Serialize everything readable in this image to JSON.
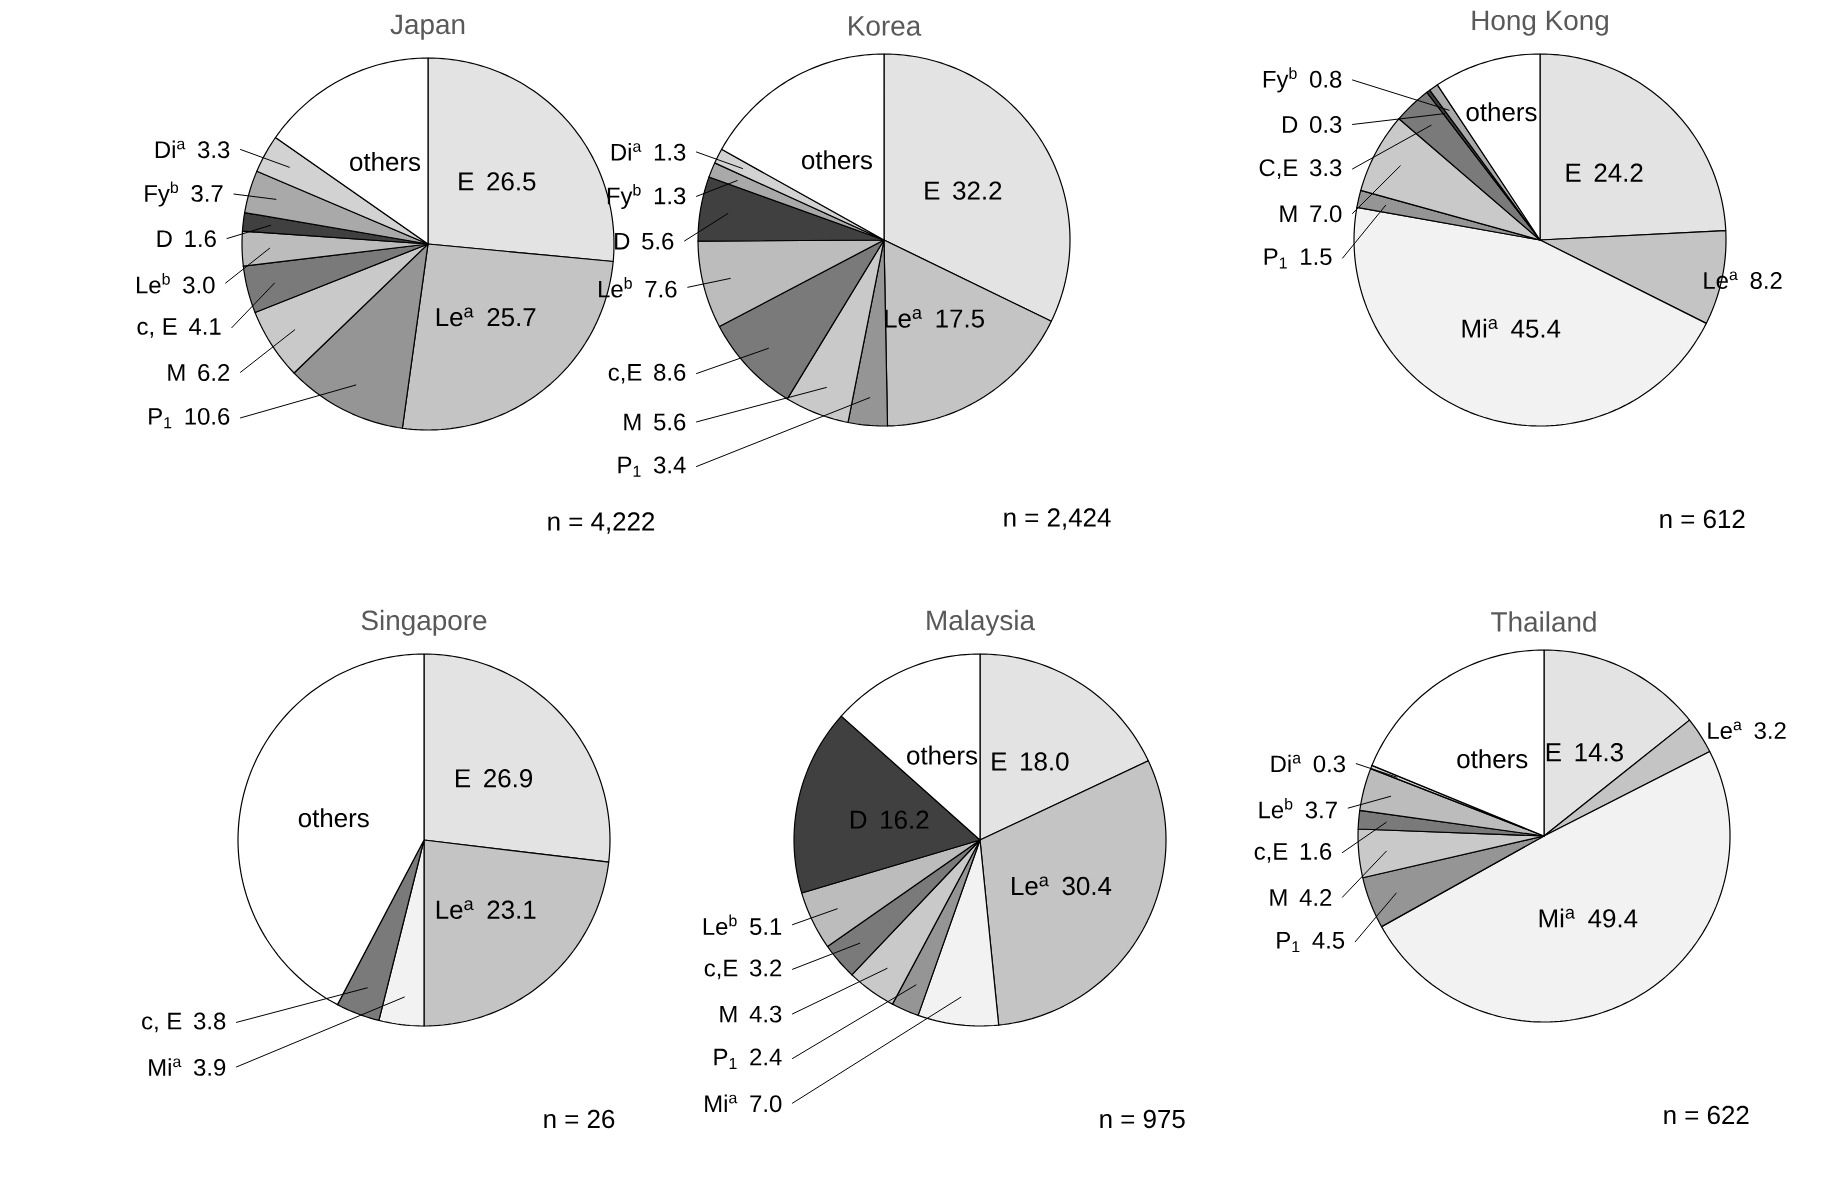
{
  "chart_data": [
    {
      "type": "pie",
      "title": "Japan",
      "categories": [
        "E",
        "Le$^{a}$",
        "P$_{1}$",
        "M",
        "c, E",
        "Le$^{b}$",
        "D",
        "Fy$^{b}$",
        "Di$^{a}$",
        "others"
      ],
      "values": [
        26.5,
        25.7,
        10.6,
        6.2,
        4.1,
        3.0,
        1.6,
        3.7,
        3.3,
        15.3
      ],
      "value_labels": [
        "26.5",
        "25.7",
        "10.6",
        "6.2",
        "4.1",
        "3.0",
        "1.6",
        "3.7",
        "3.3",
        null
      ],
      "colors": [
        "#e3e3e3",
        "#c4c4c4",
        "#959595",
        "#c9c9c9",
        "#7a7a7a",
        "#bcbcbc",
        "#404040",
        "#a9a9a9",
        "#d2d2d2",
        "#ffffff"
      ],
      "annotations": [
        "n = 4,222"
      ]
    },
    {
      "type": "pie",
      "title": "Korea",
      "categories": [
        "E",
        "Le$^{a}$",
        "P$_{1}$",
        "M",
        "c,E",
        "Le$^{b}$",
        "D",
        "Fy$^{b}$",
        "Di$^{a}$",
        "others"
      ],
      "values": [
        32.2,
        17.5,
        3.4,
        5.6,
        8.6,
        7.6,
        5.6,
        1.3,
        1.3,
        16.9
      ],
      "value_labels": [
        "32.2",
        "17.5",
        "3.4",
        "5.6",
        "8.6",
        "7.6",
        "5.6",
        "1.3",
        "1.3",
        null
      ],
      "colors": [
        "#e3e3e3",
        "#c4c4c4",
        "#959595",
        "#c9c9c9",
        "#7a7a7a",
        "#bcbcbc",
        "#404040",
        "#a9a9a9",
        "#d2d2d2",
        "#ffffff"
      ],
      "annotations": [
        "n = 2,424"
      ]
    },
    {
      "type": "pie",
      "title": "Hong Kong",
      "categories": [
        "E",
        "Le$^{a}$",
        "Mi$^{a}$",
        "P$_{1}$",
        "M",
        "C,E",
        "D",
        "Fy$^{b}$",
        "others"
      ],
      "values": [
        24.2,
        8.2,
        45.4,
        1.5,
        7.0,
        3.3,
        0.3,
        0.8,
        9.3
      ],
      "value_labels": [
        "24.2",
        "8.2",
        "45.4",
        "1.5",
        "7.0",
        "3.3",
        "0.3",
        "0.8",
        null
      ],
      "colors": [
        "#e3e3e3",
        "#c4c4c4",
        "#f2f2f2",
        "#959595",
        "#c9c9c9",
        "#7a7a7a",
        "#404040",
        "#a9a9a9",
        "#ffffff"
      ],
      "annotations": [
        "n = 612"
      ]
    },
    {
      "type": "pie",
      "title": "Singapore",
      "categories": [
        "E",
        "Le$^{a}$",
        "Mi$^{a}$",
        "c, E",
        "others"
      ],
      "values": [
        26.9,
        23.1,
        3.9,
        3.8,
        42.3
      ],
      "value_labels": [
        "26.9",
        "23.1",
        "3.9",
        "3.8",
        null
      ],
      "colors": [
        "#e3e3e3",
        "#c4c4c4",
        "#f2f2f2",
        "#7a7a7a",
        "#ffffff"
      ],
      "annotations": [
        "n = 26"
      ]
    },
    {
      "type": "pie",
      "title": "Malaysia",
      "categories": [
        "E",
        "Le$^{a}$",
        "Mi$^{a}$",
        "P$_{1}$",
        "M",
        "c,E",
        "Le$^{b}$",
        "D",
        "others"
      ],
      "values": [
        18.0,
        30.4,
        7.0,
        2.4,
        4.3,
        3.2,
        5.1,
        16.2,
        13.4
      ],
      "value_labels": [
        "18.0",
        "30.4",
        "7.0",
        "2.4",
        "4.3",
        "3.2",
        "5.1",
        "16.2",
        null
      ],
      "colors": [
        "#e3e3e3",
        "#c4c4c4",
        "#f2f2f2",
        "#959595",
        "#c9c9c9",
        "#7a7a7a",
        "#bcbcbc",
        "#404040",
        "#ffffff"
      ],
      "annotations": [
        "n = 975"
      ]
    },
    {
      "type": "pie",
      "title": "Thailand",
      "categories": [
        "E",
        "Le$^{a}$",
        "Mi$^{a}$",
        "P$_{1}$",
        "M",
        "c,E",
        "Le$^{b}$",
        "Di$^{a}$",
        "others"
      ],
      "values": [
        14.3,
        3.2,
        49.4,
        4.5,
        4.2,
        1.6,
        3.7,
        0.3,
        18.8
      ],
      "value_labels": [
        "14.3",
        "3.2",
        "49.4",
        "4.5",
        "4.2",
        "1.6",
        "3.7",
        "0.3",
        null
      ],
      "colors": [
        "#e3e3e3",
        "#c4c4c4",
        "#f2f2f2",
        "#959595",
        "#c9c9c9",
        "#7a7a7a",
        "#bcbcbc",
        "#d2d2d2",
        "#ffffff"
      ],
      "annotations": [
        "n = 622"
      ]
    }
  ]
}
